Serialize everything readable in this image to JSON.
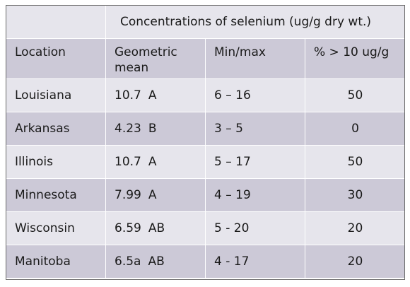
{
  "table": {
    "span_header": "Concentrations of selenium (ug/g dry wt.)",
    "columns": [
      "Location",
      "Geometric mean",
      "Min/max",
      "% > 10 ug/g"
    ],
    "rows": [
      {
        "location": "Louisiana",
        "mean": "10.7",
        "grade": "A",
        "minmax": "6 – 16",
        "pct": "50"
      },
      {
        "location": "Arkansas",
        "mean": "4.23",
        "grade": "B",
        "minmax": "3 – 5",
        "pct": "0"
      },
      {
        "location": "Illinois",
        "mean": "10.7",
        "grade": "A",
        "minmax": "5 – 17",
        "pct": "50"
      },
      {
        "location": "Minnesota",
        "mean": "7.99",
        "grade": "A",
        "minmax": "4 – 19",
        "pct": "30"
      },
      {
        "location": "Wisconsin",
        "mean": "6.59",
        "grade": "AB",
        "minmax": "5 - 20",
        "pct": "20"
      },
      {
        "location": "Manitoba",
        "mean": "6.5a",
        "grade": "AB",
        "minmax": "4 - 17",
        "pct": "20"
      }
    ]
  },
  "colors": {
    "shade_dark": "#ccc9d7",
    "shade_light": "#e6e5ec",
    "border": "#ffffff"
  }
}
